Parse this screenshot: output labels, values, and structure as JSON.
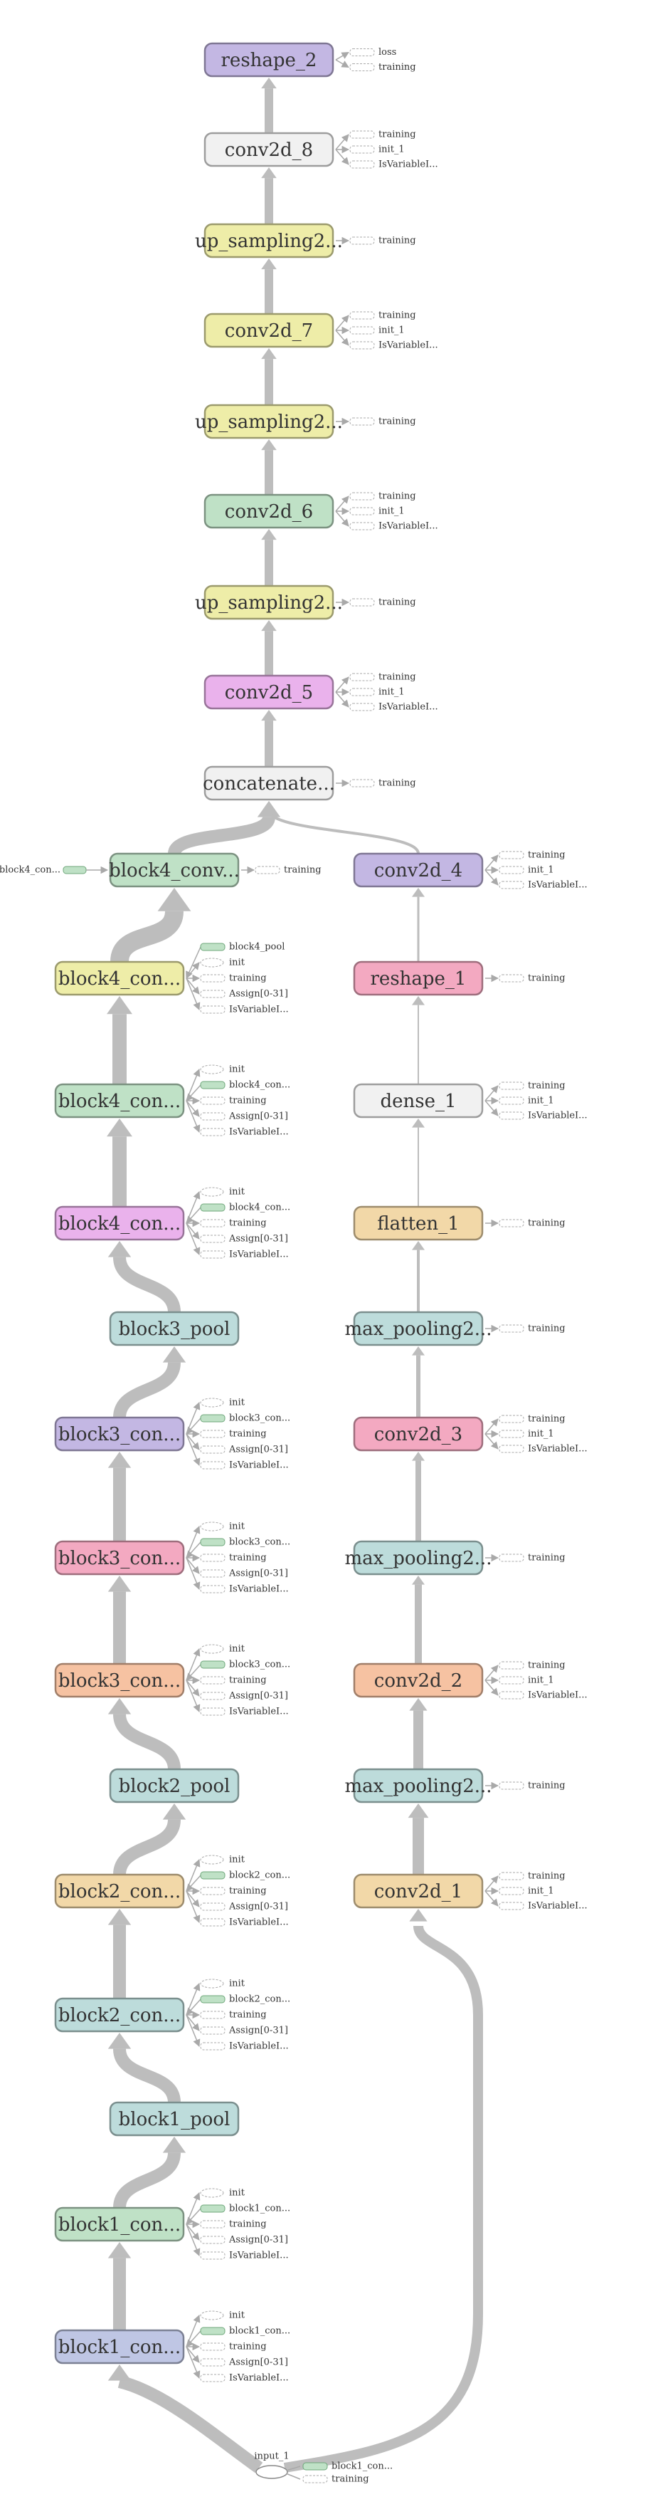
{
  "colors": {
    "purple": "#c3b7e3",
    "white": "#f1f1f1",
    "yellow": "#eeeda8",
    "green": "#bfe1c6",
    "pink": "#eab2ec",
    "orange": "#f6c2a2",
    "teal": "#bddcdb",
    "peach": "#f2d8a8",
    "rose": "#f3a9c1",
    "blue": "#bfc6e4"
  },
  "aux": {
    "training": "training",
    "init_1": "init_1",
    "isvar": "IsVariableI...",
    "loss": "loss",
    "init": "init",
    "assign": "Assign[0-31]"
  },
  "nodes": {
    "reshape_2": {
      "label": "reshape_2",
      "color": "purple"
    },
    "conv2d_8": {
      "label": "conv2d_8",
      "color": "white"
    },
    "up_sampling2d_c": {
      "label": "up_sampling2...",
      "color": "yellow"
    },
    "conv2d_7": {
      "label": "conv2d_7",
      "color": "yellow"
    },
    "up_sampling2d_b": {
      "label": "up_sampling2...",
      "color": "yellow"
    },
    "conv2d_6": {
      "label": "conv2d_6",
      "color": "green"
    },
    "up_sampling2d_a": {
      "label": "up_sampling2...",
      "color": "yellow"
    },
    "conv2d_5": {
      "label": "conv2d_5",
      "color": "pink"
    },
    "concatenate": {
      "label": "concatenate...",
      "color": "white"
    },
    "block4_conv_top": {
      "label": "block4_conv...",
      "color": "green"
    },
    "conv2d_4": {
      "label": "conv2d_4",
      "color": "purple"
    },
    "block4_con_3": {
      "label": "block4_con...",
      "color": "yellow"
    },
    "reshape_1": {
      "label": "reshape_1",
      "color": "rose"
    },
    "block4_con_2": {
      "label": "block4_con...",
      "color": "green"
    },
    "dense_1": {
      "label": "dense_1",
      "color": "white"
    },
    "block4_con_1": {
      "label": "block4_con...",
      "color": "pink"
    },
    "flatten_1": {
      "label": "flatten_1",
      "color": "peach"
    },
    "block3_pool": {
      "label": "block3_pool",
      "color": "teal"
    },
    "max_pooling_c": {
      "label": "max_pooling2...",
      "color": "teal"
    },
    "block3_con_3": {
      "label": "block3_con...",
      "color": "purple"
    },
    "conv2d_3": {
      "label": "conv2d_3",
      "color": "rose"
    },
    "block3_con_2": {
      "label": "block3_con...",
      "color": "rose"
    },
    "max_pooling_b": {
      "label": "max_pooling2...",
      "color": "teal"
    },
    "block3_con_1": {
      "label": "block3_con...",
      "color": "orange"
    },
    "conv2d_2": {
      "label": "conv2d_2",
      "color": "orange"
    },
    "block2_pool": {
      "label": "block2_pool",
      "color": "teal"
    },
    "max_pooling_a": {
      "label": "max_pooling2...",
      "color": "teal"
    },
    "block2_con_2": {
      "label": "block2_con...",
      "color": "peach"
    },
    "conv2d_1": {
      "label": "conv2d_1",
      "color": "peach"
    },
    "block2_con_1": {
      "label": "block2_con...",
      "color": "teal"
    },
    "block1_pool": {
      "label": "block1_pool",
      "color": "teal"
    },
    "block1_con_2": {
      "label": "block1_con...",
      "color": "green"
    },
    "block1_con_1": {
      "label": "block1_con...",
      "color": "blue"
    },
    "input_1": {
      "label": "input_1"
    }
  },
  "side_labels": {
    "block4_pool": "block4_pool",
    "block4_con": "block4_con...",
    "block3_con": "block3_con...",
    "block2_con": "block2_con...",
    "block1_con": "block1_con...",
    "left_block4_con": "block4_con..."
  }
}
